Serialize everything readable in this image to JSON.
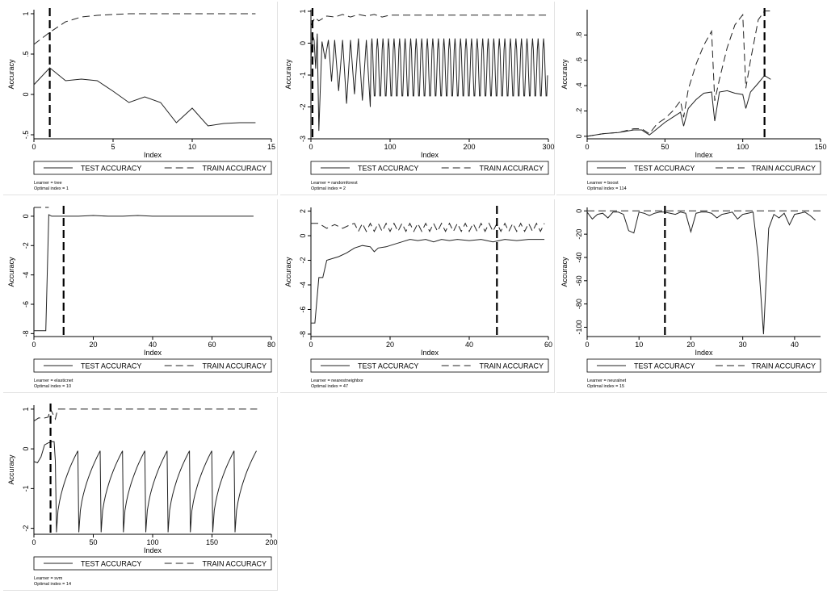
{
  "legend_labels": {
    "test": "TEST ACCURACY",
    "train": "TRAIN ACCURACY"
  },
  "chart_data": [
    {
      "type": "line",
      "xlabel": "Index",
      "ylabel": "Accuracy",
      "xlim": [
        0,
        15
      ],
      "ylim": [
        -0.55,
        1.05
      ],
      "xticks": [
        0,
        5,
        10,
        15
      ],
      "yticks": [
        -0.5,
        0,
        0.5,
        1
      ],
      "yticklabels": [
        "-.5",
        "0",
        ".5",
        "1"
      ],
      "vline": 1,
      "note1": "Learner = tree",
      "note2": "Optimal index = 1",
      "series": [
        {
          "key": "test",
          "x": [
            0,
            1,
            2,
            3,
            4,
            5,
            6,
            7,
            8,
            9,
            10,
            11,
            12,
            13,
            14
          ],
          "y": [
            0.12,
            0.33,
            0.17,
            0.19,
            0.17,
            0.04,
            -0.1,
            -0.03,
            -0.1,
            -0.35,
            -0.17,
            -0.39,
            -0.36,
            -0.35,
            -0.35
          ]
        },
        {
          "key": "train",
          "x": [
            0,
            1,
            2,
            3,
            4,
            5,
            6,
            7,
            8,
            9,
            10,
            11,
            12,
            13,
            14
          ],
          "y": [
            0.62,
            0.77,
            0.9,
            0.96,
            0.98,
            0.99,
            1.0,
            1.0,
            1.0,
            1.0,
            1.0,
            1.0,
            1.0,
            1.0,
            1.0
          ]
        }
      ]
    },
    {
      "type": "line",
      "xlabel": "Index",
      "ylabel": "Accuracy",
      "xlim": [
        0,
        300
      ],
      "ylim": [
        -3,
        1.05
      ],
      "xticks": [
        0,
        100,
        200,
        300
      ],
      "yticks": [
        -3,
        -2,
        -1,
        0,
        1
      ],
      "vline": 2,
      "note1": "Learner = randomforest",
      "note2": "Optimal index = 2",
      "pattern": {
        "kind": "osc",
        "n": 300,
        "period": 7,
        "hi": 0.15,
        "lo": -1.75,
        "start": 10
      },
      "series": [
        {
          "key": "test",
          "x": [
            0,
            2,
            4,
            6,
            8,
            10,
            14,
            18,
            22,
            26,
            30,
            35,
            40,
            45,
            50,
            55,
            60,
            65,
            70,
            75
          ],
          "y": [
            -0.5,
            0.25,
            0.1,
            -0.8,
            0.3,
            -2.75,
            0.05,
            -0.5,
            0.1,
            -1.2,
            0.1,
            -1.5,
            0.1,
            -1.9,
            0.1,
            -1.6,
            0.15,
            -1.8,
            0.1,
            -2.0
          ]
        },
        {
          "key": "train",
          "x": [
            0,
            5,
            10,
            20,
            30,
            40,
            50,
            60,
            70,
            80,
            90,
            100,
            150,
            200,
            250,
            300
          ],
          "y": [
            0.55,
            0.8,
            0.7,
            0.85,
            0.82,
            0.9,
            0.82,
            0.9,
            0.85,
            0.9,
            0.82,
            0.88,
            0.88,
            0.88,
            0.88,
            0.88
          ]
        }
      ]
    },
    {
      "type": "line",
      "xlabel": "Index",
      "ylabel": "Accuracy",
      "xlim": [
        0,
        150
      ],
      "ylim": [
        -0.02,
        1.0
      ],
      "xticks": [
        0,
        50,
        100,
        150
      ],
      "yticks": [
        0,
        0.2,
        0.4,
        0.6,
        0.8
      ],
      "yticklabels": [
        "0",
        ".2",
        ".4",
        ".6",
        ".8"
      ],
      "vline": 114,
      "note1": "Learner = boost",
      "note2": "Optimal index = 114",
      "series": [
        {
          "key": "test",
          "x": [
            0,
            10,
            20,
            25,
            30,
            35,
            40,
            45,
            50,
            55,
            60,
            62,
            65,
            70,
            75,
            80,
            82,
            85,
            90,
            95,
            100,
            102,
            105,
            110,
            114,
            118
          ],
          "y": [
            0.0,
            0.02,
            0.03,
            0.04,
            0.05,
            0.05,
            0.01,
            0.06,
            0.11,
            0.15,
            0.19,
            0.08,
            0.22,
            0.29,
            0.34,
            0.35,
            0.12,
            0.35,
            0.36,
            0.34,
            0.33,
            0.22,
            0.35,
            0.42,
            0.48,
            0.45
          ]
        },
        {
          "key": "train",
          "x": [
            0,
            10,
            20,
            30,
            35,
            40,
            45,
            50,
            55,
            60,
            62,
            65,
            70,
            75,
            80,
            82,
            85,
            90,
            95,
            100,
            102,
            105,
            110,
            114,
            120
          ],
          "y": [
            0.0,
            0.02,
            0.03,
            0.06,
            0.06,
            0.02,
            0.1,
            0.14,
            0.2,
            0.28,
            0.15,
            0.37,
            0.57,
            0.72,
            0.83,
            0.28,
            0.45,
            0.7,
            0.88,
            0.96,
            0.38,
            0.6,
            0.92,
            0.99,
            0.99
          ]
        }
      ]
    },
    {
      "type": "line",
      "xlabel": "Index",
      "ylabel": "Accuracy",
      "xlim": [
        0,
        80
      ],
      "ylim": [
        -8.2,
        0.6
      ],
      "xticks": [
        0,
        20,
        40,
        60,
        80
      ],
      "yticks": [
        -8,
        -6,
        -4,
        -2,
        0
      ],
      "vline": 10,
      "note1": "Learner = elasticnet",
      "note2": "Optimal index = 10",
      "series": [
        {
          "key": "test",
          "x": [
            0,
            4,
            5,
            6,
            8,
            10,
            15,
            20,
            25,
            30,
            35,
            40,
            45,
            50,
            55,
            60,
            65,
            70,
            74
          ],
          "y": [
            -7.8,
            -7.8,
            0.1,
            0.0,
            0.0,
            0.0,
            0.0,
            0.05,
            0.0,
            0.0,
            0.05,
            0.0,
            0.0,
            0.0,
            0.0,
            0.0,
            0.0,
            0.0,
            0.0
          ]
        },
        {
          "key": "train",
          "x": [
            0,
            5
          ],
          "y": [
            0.6,
            0.6
          ]
        }
      ]
    },
    {
      "type": "line",
      "xlabel": "Index",
      "ylabel": "Accuracy",
      "xlim": [
        0,
        60
      ],
      "ylim": [
        -8.2,
        2.3
      ],
      "xticks": [
        0,
        20,
        40,
        60
      ],
      "yticks": [
        -8,
        -6,
        -4,
        -2,
        0,
        2
      ],
      "vline": 47,
      "note1": "Learner = nearestneighbor",
      "note2": "Optimal index = 47",
      "pattern": {
        "kind": "zigzag",
        "n": 60,
        "hi": 1.0,
        "lo": 0.35
      },
      "series": [
        {
          "key": "test",
          "x": [
            0,
            1,
            2,
            3,
            4,
            5,
            7,
            9,
            11,
            13,
            15,
            16,
            17,
            19,
            21,
            23,
            25,
            27,
            29,
            31,
            33,
            35,
            37,
            40,
            43,
            46,
            49,
            52,
            55,
            59
          ],
          "y": [
            -7.1,
            -7.1,
            -3.4,
            -3.4,
            -2.0,
            -1.9,
            -1.7,
            -1.4,
            -1.0,
            -0.8,
            -0.9,
            -1.3,
            -1.0,
            -0.9,
            -0.7,
            -0.5,
            -0.3,
            -0.4,
            -0.3,
            -0.5,
            -0.3,
            -0.4,
            -0.3,
            -0.4,
            -0.3,
            -0.5,
            -0.3,
            -0.4,
            -0.3,
            -0.3
          ]
        },
        {
          "key": "train",
          "x": [
            0,
            2,
            4,
            6,
            8,
            10
          ],
          "y": [
            1.0,
            1.0,
            0.6,
            0.9,
            0.6,
            0.9
          ]
        }
      ]
    },
    {
      "type": "line",
      "xlabel": "Index",
      "ylabel": "Accuracy",
      "xlim": [
        0,
        45
      ],
      "ylim": [
        -108,
        3
      ],
      "xticks": [
        0,
        10,
        20,
        30,
        40
      ],
      "yticks": [
        -100,
        -80,
        -60,
        -40,
        -20,
        0
      ],
      "vline": 15,
      "note1": "Learner = neuralnet",
      "note2": "Optimal index = 15",
      "series": [
        {
          "key": "test",
          "x": [
            0,
            1,
            2,
            3,
            4,
            5,
            6,
            7,
            8,
            9,
            10,
            11,
            12,
            13,
            14,
            15,
            16,
            17,
            18,
            19,
            20,
            21,
            22,
            23,
            24,
            25,
            26,
            27,
            28,
            29,
            30,
            31,
            32,
            33,
            34,
            35,
            36,
            37,
            38,
            39,
            40,
            41,
            42,
            43,
            44
          ],
          "y": [
            -1,
            -7,
            -3,
            -2,
            -6,
            -1,
            -1,
            -3,
            -17,
            -19,
            -1,
            -2,
            -4,
            -2,
            -1,
            -1,
            -2,
            -3,
            -1,
            -2,
            -18,
            -2,
            -1,
            -1,
            -2,
            -6,
            -3,
            -2,
            -1,
            -7,
            -3,
            -2,
            -1,
            -40,
            -106,
            -15,
            -3,
            -6,
            -2,
            -12,
            -3,
            -2,
            -1,
            -4,
            -8
          ]
        },
        {
          "key": "train",
          "x": [
            0,
            45
          ],
          "y": [
            0,
            0
          ]
        }
      ]
    },
    {
      "type": "line",
      "xlabel": "Index",
      "ylabel": "Accuracy",
      "xlim": [
        0,
        200
      ],
      "ylim": [
        -2.15,
        1.1
      ],
      "xticks": [
        0,
        50,
        100,
        150,
        200
      ],
      "yticks": [
        -2,
        -1,
        0,
        1
      ],
      "vline": 14,
      "note1": "Learner = svm",
      "note2": "Optimal index = 14",
      "pattern": {
        "kind": "svm",
        "period": 18.8,
        "start": 19,
        "end": 188,
        "hi": -0.05,
        "lo": -2.1
      },
      "series": [
        {
          "key": "test",
          "x": [
            0,
            3,
            6,
            9,
            12,
            15,
            17,
            18,
            19
          ],
          "y": [
            -0.32,
            -0.35,
            -0.2,
            0.1,
            0.15,
            0.18,
            0.18,
            -0.3,
            -2.0
          ]
        },
        {
          "key": "train",
          "x": [
            0,
            4,
            8,
            12,
            14,
            18,
            20,
            25,
            30,
            40,
            60,
            80,
            100,
            120,
            140,
            160,
            180,
            188
          ],
          "y": [
            0.7,
            0.78,
            0.77,
            0.8,
            1.0,
            0.75,
            1.0,
            1.0,
            1.0,
            1.0,
            1.0,
            1.0,
            1.0,
            1.0,
            1.0,
            1.0,
            1.0,
            1.0
          ]
        }
      ]
    }
  ]
}
